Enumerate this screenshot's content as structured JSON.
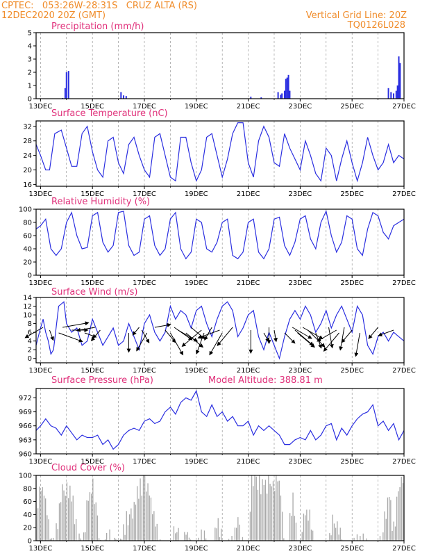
{
  "header": {
    "line1": "CPTEC:   053:26W-28:31S   CRUZ ALTA (RS)",
    "line2": "12DEC2020 20Z (GMT)",
    "grid_note": "Vertical Grid Line: 20Z",
    "code": "TQ0126L028"
  },
  "colors": {
    "header": "#f08c2a",
    "title": "#e0307a",
    "line": "#2a2ee0",
    "cloud": "#a9a9a9",
    "arrow": "#000000"
  },
  "x_labels": [
    "13DEC",
    "15DEC",
    "17DEC",
    "19DEC",
    "21DEC",
    "23DEC",
    "25DEC",
    "27DEC"
  ],
  "x_label_days": [
    13,
    15,
    17,
    19,
    21,
    23,
    25,
    27
  ],
  "x_range_days": [
    12.83,
    27.0
  ],
  "panels": {
    "precip": {
      "title": "Precipitation (mm/h)",
      "yticks": [
        0,
        1,
        2,
        3,
        4,
        5
      ],
      "ylim": [
        0,
        5
      ]
    },
    "temp": {
      "title": "Surface Temperature (nC)",
      "yticks": [
        16,
        20,
        24,
        28,
        32
      ],
      "ylim": [
        15.5,
        33.5
      ]
    },
    "rh": {
      "title": "Relative Humidity (%)",
      "yticks": [
        0,
        20,
        40,
        60,
        80,
        100
      ],
      "ylim": [
        0,
        100
      ]
    },
    "wind": {
      "title": "Surface Wind (m/s)",
      "yticks": [
        0,
        2,
        4,
        6,
        8,
        10,
        12,
        14
      ],
      "ylim": [
        -1,
        14
      ]
    },
    "press": {
      "title": "Surface Pressure (hPa)",
      "model_altitude": "Model Altitude: 388.81 m",
      "yticks": [
        960,
        963,
        966,
        969,
        972
      ],
      "ylim": [
        960,
        974
      ]
    },
    "cloud": {
      "title": "Cloud Cover (%)",
      "yticks": [
        0,
        20,
        40,
        60,
        80,
        100
      ],
      "ylim": [
        0,
        100
      ]
    }
  },
  "chart_data": [
    {
      "type": "bar",
      "title": "Precipitation (mm/h)",
      "ylim": [
        0,
        5
      ],
      "x": [
        13.85,
        13.95,
        14.0,
        14.08,
        16.1,
        16.2,
        16.3,
        21.1,
        21.5,
        22.15,
        22.25,
        22.3,
        22.4,
        22.45,
        22.5,
        22.55,
        22.6,
        26.4,
        26.5,
        26.6,
        26.7,
        26.75,
        26.8,
        26.85
      ],
      "values": [
        0.05,
        0.8,
        2.0,
        2.1,
        0.5,
        0.25,
        0.2,
        0.15,
        0.1,
        0.5,
        0.3,
        0.4,
        0.6,
        1.5,
        1.6,
        1.8,
        0.6,
        0.8,
        0.5,
        0.4,
        0.6,
        1.0,
        3.2,
        2.7
      ]
    },
    {
      "type": "line",
      "title": "Surface Temperature (nC)",
      "ylim": [
        15.5,
        33.5
      ],
      "x": [
        12.83,
        13.0,
        13.2,
        13.35,
        13.55,
        13.8,
        14.0,
        14.2,
        14.4,
        14.6,
        14.8,
        15.0,
        15.2,
        15.4,
        15.6,
        15.8,
        16.0,
        16.2,
        16.4,
        16.6,
        16.8,
        17.0,
        17.2,
        17.4,
        17.6,
        17.8,
        18.0,
        18.2,
        18.4,
        18.6,
        18.8,
        19.0,
        19.2,
        19.4,
        19.6,
        19.8,
        20.0,
        20.2,
        20.4,
        20.6,
        20.8,
        21.0,
        21.2,
        21.4,
        21.6,
        21.8,
        22.0,
        22.2,
        22.4,
        22.6,
        22.8,
        23.0,
        23.2,
        23.4,
        23.6,
        23.8,
        24.0,
        24.2,
        24.4,
        24.6,
        24.8,
        25.0,
        25.2,
        25.4,
        25.6,
        25.8,
        26.0,
        26.2,
        26.4,
        26.6,
        26.8,
        27.0
      ],
      "values": [
        27,
        24,
        20,
        20,
        30,
        31,
        26,
        21,
        21,
        30,
        32,
        25,
        20,
        18,
        28,
        29,
        22,
        19,
        27,
        29,
        24,
        20,
        18,
        29,
        30,
        24,
        18,
        17,
        29,
        29,
        22,
        17,
        20,
        29,
        30,
        24,
        18,
        23,
        30,
        33,
        33,
        22,
        18,
        28,
        32,
        29,
        22,
        21,
        30,
        26,
        23,
        20,
        28,
        24,
        19,
        17,
        26,
        24,
        17,
        23,
        28,
        22,
        17,
        22,
        29,
        24,
        20,
        22,
        27,
        22,
        24,
        23
      ]
    },
    {
      "type": "line",
      "title": "Relative Humidity (%)",
      "ylim": [
        0,
        100
      ],
      "x": [
        12.83,
        13.0,
        13.2,
        13.4,
        13.6,
        13.8,
        14.0,
        14.2,
        14.4,
        14.6,
        14.8,
        15.0,
        15.2,
        15.4,
        15.6,
        15.8,
        16.0,
        16.2,
        16.4,
        16.6,
        16.8,
        17.0,
        17.2,
        17.4,
        17.6,
        17.8,
        18.0,
        18.2,
        18.4,
        18.6,
        18.8,
        19.0,
        19.2,
        19.4,
        19.6,
        19.8,
        20.0,
        20.2,
        20.4,
        20.6,
        20.8,
        21.0,
        21.2,
        21.4,
        21.6,
        21.8,
        22.0,
        22.2,
        22.4,
        22.6,
        22.8,
        23.0,
        23.2,
        23.4,
        23.6,
        23.8,
        24.0,
        24.2,
        24.4,
        24.6,
        24.8,
        25.0,
        25.2,
        25.4,
        25.6,
        25.8,
        26.0,
        26.2,
        26.4,
        26.6,
        26.8,
        27.0
      ],
      "values": [
        70,
        75,
        85,
        40,
        30,
        40,
        80,
        95,
        60,
        40,
        42,
        90,
        95,
        50,
        35,
        45,
        95,
        97,
        45,
        30,
        35,
        85,
        90,
        45,
        30,
        40,
        85,
        95,
        40,
        25,
        35,
        85,
        80,
        40,
        35,
        50,
        80,
        85,
        30,
        25,
        35,
        80,
        85,
        35,
        25,
        40,
        85,
        88,
        45,
        30,
        50,
        85,
        90,
        55,
        40,
        80,
        97,
        60,
        35,
        50,
        90,
        85,
        40,
        30,
        70,
        95,
        90,
        65,
        55,
        75,
        80,
        85
      ]
    },
    {
      "type": "line",
      "title": "Surface Wind (m/s)",
      "ylim": [
        -1,
        14
      ],
      "x": [
        12.83,
        13.0,
        13.1,
        13.2,
        13.3,
        13.4,
        13.5,
        13.7,
        13.9,
        14.0,
        14.2,
        14.4,
        14.6,
        14.8,
        15.0,
        15.2,
        15.4,
        15.6,
        15.8,
        16.0,
        16.2,
        16.4,
        16.6,
        16.8,
        17.0,
        17.2,
        17.4,
        17.6,
        17.8,
        18.0,
        18.2,
        18.4,
        18.6,
        18.8,
        19.0,
        19.2,
        19.4,
        19.6,
        19.8,
        20.0,
        20.2,
        20.4,
        20.6,
        20.8,
        21.0,
        21.2,
        21.4,
        21.6,
        21.8,
        22.0,
        22.2,
        22.4,
        22.6,
        22.8,
        23.0,
        23.2,
        23.4,
        23.6,
        23.8,
        24.0,
        24.2,
        24.4,
        24.6,
        24.8,
        25.0,
        25.2,
        25.4,
        25.6,
        25.8,
        26.0,
        26.2,
        26.4,
        26.6,
        26.8,
        27.0
      ],
      "values": [
        3,
        7,
        9,
        6,
        4,
        1,
        2,
        12,
        13,
        8,
        6,
        7,
        3,
        4,
        9,
        6,
        3,
        5,
        7,
        3,
        4,
        8,
        5,
        2,
        8,
        10,
        6,
        4,
        6,
        12,
        9,
        11,
        10,
        7,
        11,
        12,
        8,
        5,
        9,
        12,
        13,
        11,
        5,
        7,
        10,
        11,
        5,
        2,
        6,
        3,
        0,
        5,
        9,
        11,
        9,
        12,
        10,
        6,
        8,
        11,
        7,
        10,
        12,
        9,
        6,
        12,
        10,
        3,
        1,
        5,
        6,
        4,
        6,
        5,
        4
      ]
    },
    {
      "type": "line",
      "title": "Surface Pressure (hPa)",
      "ylim": [
        960,
        974
      ],
      "x": [
        12.83,
        13.0,
        13.2,
        13.4,
        13.6,
        13.8,
        14.0,
        14.2,
        14.4,
        14.6,
        14.8,
        15.0,
        15.2,
        15.4,
        15.6,
        15.8,
        16.0,
        16.2,
        16.4,
        16.6,
        16.8,
        17.0,
        17.2,
        17.4,
        17.6,
        17.8,
        18.0,
        18.2,
        18.4,
        18.6,
        18.8,
        19.0,
        19.2,
        19.4,
        19.6,
        19.8,
        20.0,
        20.2,
        20.4,
        20.6,
        20.8,
        21.0,
        21.2,
        21.4,
        21.6,
        21.8,
        22.0,
        22.2,
        22.4,
        22.6,
        22.8,
        23.0,
        23.2,
        23.4,
        23.6,
        23.8,
        24.0,
        24.2,
        24.4,
        24.6,
        24.8,
        25.0,
        25.2,
        25.4,
        25.6,
        25.8,
        26.0,
        26.2,
        26.4,
        26.6,
        26.8,
        27.0
      ],
      "values": [
        965,
        966,
        967.5,
        966,
        965.5,
        964,
        966,
        964.5,
        963,
        964,
        963.5,
        963.5,
        964,
        962,
        963,
        961,
        962,
        964,
        965,
        965.5,
        965,
        967,
        967.5,
        966.5,
        967,
        969,
        970,
        968.5,
        971,
        972,
        971.5,
        973.5,
        969,
        968,
        970.5,
        968,
        969,
        967,
        968,
        966,
        966,
        967,
        964,
        966,
        965,
        966,
        965,
        964,
        962,
        962,
        963,
        963.5,
        963,
        965,
        963,
        964,
        966,
        966.5,
        963,
        965.5,
        964,
        966,
        967.5,
        968.5,
        969,
        970.5,
        966,
        967,
        965,
        966.5,
        963,
        965
      ]
    },
    {
      "type": "area",
      "title": "Cloud Cover (%)",
      "ylim": [
        0,
        100
      ],
      "x": [
        12.83,
        13.0,
        13.2,
        13.35,
        13.45,
        13.6,
        13.8,
        13.95,
        14.0,
        14.2,
        14.4,
        14.6,
        14.8,
        15.0,
        15.15,
        15.3,
        15.45,
        15.6,
        15.8,
        16.0,
        16.2,
        16.4,
        16.6,
        16.8,
        17.0,
        17.2,
        17.4,
        17.6,
        17.8,
        18.0,
        18.2,
        18.4,
        18.5,
        18.6,
        18.7,
        18.8,
        19.0,
        19.2,
        19.4,
        19.5,
        19.6,
        19.8,
        20.0,
        20.2,
        20.4,
        20.6,
        20.8,
        21.0,
        21.1,
        21.3,
        21.6,
        21.9,
        22.2,
        22.4,
        22.5,
        22.7,
        22.9,
        23.0,
        23.2,
        23.4,
        23.5,
        23.7,
        24.0,
        24.2,
        24.4,
        24.6,
        24.8,
        25.0,
        25.2,
        25.4,
        25.6,
        25.8,
        26.0,
        26.2,
        26.4,
        26.6,
        26.8,
        27.0
      ],
      "values": [
        60,
        90,
        70,
        10,
        0,
        30,
        90,
        95,
        98,
        75,
        10,
        0,
        70,
        90,
        40,
        0,
        0,
        15,
        5,
        0,
        30,
        50,
        65,
        90,
        100,
        80,
        40,
        0,
        0,
        0,
        30,
        0,
        0,
        25,
        5,
        0,
        0,
        15,
        0,
        0,
        0,
        40,
        0,
        0,
        15,
        40,
        0,
        0,
        100,
        100,
        95,
        100,
        100,
        0,
        0,
        85,
        0,
        0,
        60,
        40,
        0,
        0,
        0,
        30,
        40,
        0,
        0,
        0,
        15,
        10,
        0,
        0,
        0,
        30,
        80,
        20,
        95,
        100
      ]
    }
  ],
  "wind_barbs": [
    [
      13.1,
      -150
    ],
    [
      13.35,
      -70
    ],
    [
      13.7,
      -20
    ],
    [
      13.85,
      10
    ],
    [
      14.2,
      0
    ],
    [
      14.7,
      -20
    ],
    [
      15.1,
      -170
    ],
    [
      15.3,
      -130
    ],
    [
      16.4,
      -90
    ],
    [
      16.8,
      -130
    ],
    [
      16.9,
      -60
    ],
    [
      17.1,
      -120
    ],
    [
      17.4,
      10
    ],
    [
      17.8,
      -50
    ],
    [
      18.0,
      -60
    ],
    [
      18.15,
      -35
    ],
    [
      18.3,
      -30
    ],
    [
      18.6,
      -40
    ],
    [
      18.8,
      -40
    ],
    [
      19.2,
      -140
    ],
    [
      19.3,
      -110
    ],
    [
      19.6,
      -120
    ],
    [
      19.9,
      -160
    ],
    [
      20.0,
      -120
    ],
    [
      20.4,
      -130
    ],
    [
      21.1,
      -90
    ],
    [
      21.6,
      -60
    ],
    [
      21.8,
      -90
    ],
    [
      22.0,
      -80
    ],
    [
      22.4,
      -45
    ],
    [
      22.7,
      -30
    ],
    [
      22.8,
      -40
    ],
    [
      22.9,
      -40
    ],
    [
      23.1,
      -30
    ],
    [
      23.3,
      -45
    ],
    [
      23.6,
      -70
    ],
    [
      24.1,
      -80
    ],
    [
      24.4,
      -150
    ],
    [
      24.5,
      -130
    ],
    [
      24.7,
      -100
    ],
    [
      25.0,
      -130
    ],
    [
      25.3,
      -100
    ],
    [
      26.0,
      -130
    ],
    [
      26.6,
      -160
    ]
  ]
}
